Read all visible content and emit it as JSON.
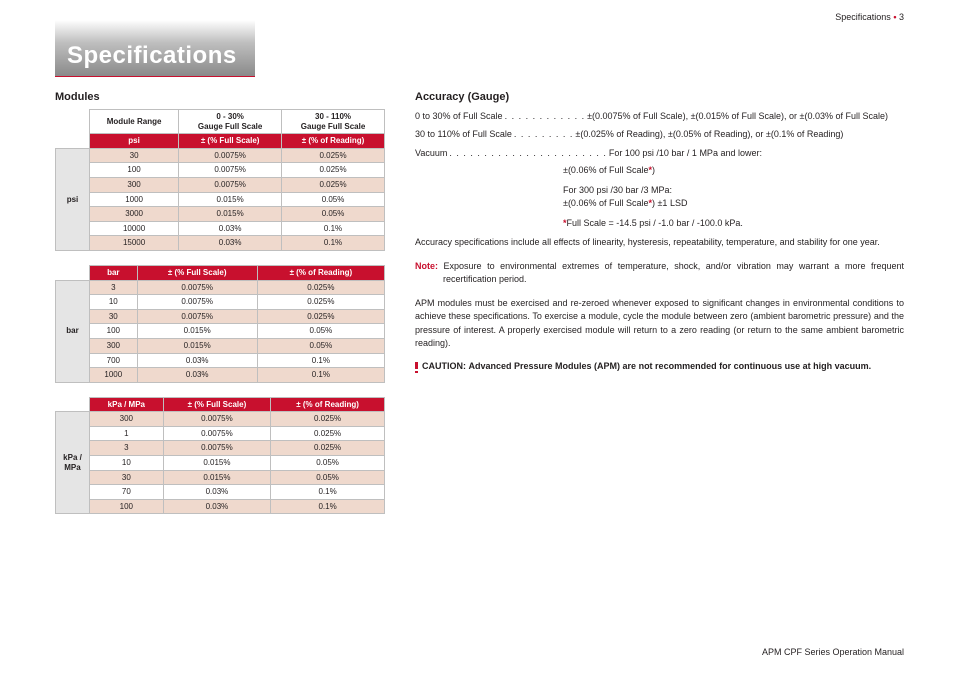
{
  "page_header": {
    "label": "Specifications",
    "bullet": "•",
    "page_num": "3"
  },
  "title": "Specifications",
  "modules_heading": "Modules",
  "accuracy_heading": "Accuracy (Gauge)",
  "tables": {
    "psi": {
      "side_label": "psi",
      "headers": [
        "Module Range",
        "0 - 30%\nGauge Full Scale",
        "30 - 110%\nGauge Full Scale"
      ],
      "unit_row": [
        "psi",
        "± (% Full Scale)",
        "± (% of Reading)"
      ],
      "rows": [
        [
          "30",
          "0.0075%",
          "0.025%"
        ],
        [
          "100",
          "0.0075%",
          "0.025%"
        ],
        [
          "300",
          "0.0075%",
          "0.025%"
        ],
        [
          "1000",
          "0.015%",
          "0.05%"
        ],
        [
          "3000",
          "0.015%",
          "0.05%"
        ],
        [
          "10000",
          "0.03%",
          "0.1%"
        ],
        [
          "15000",
          "0.03%",
          "0.1%"
        ]
      ]
    },
    "bar": {
      "side_label": "bar",
      "unit_row": [
        "bar",
        "± (% Full Scale)",
        "± (% of Reading)"
      ],
      "rows": [
        [
          "3",
          "0.0075%",
          "0.025%"
        ],
        [
          "10",
          "0.0075%",
          "0.025%"
        ],
        [
          "30",
          "0.0075%",
          "0.025%"
        ],
        [
          "100",
          "0.015%",
          "0.05%"
        ],
        [
          "300",
          "0.015%",
          "0.05%"
        ],
        [
          "700",
          "0.03%",
          "0.1%"
        ],
        [
          "1000",
          "0.03%",
          "0.1%"
        ]
      ]
    },
    "kpa": {
      "side_label": "kPa / MPa",
      "unit_row": [
        "kPa / MPa",
        "± (% Full Scale)",
        "± (% of Reading)"
      ],
      "rows": [
        [
          "300",
          "0.0075%",
          "0.025%"
        ],
        [
          "1",
          "0.0075%",
          "0.025%"
        ],
        [
          "3",
          "0.0075%",
          "0.025%"
        ],
        [
          "10",
          "0.015%",
          "0.05%"
        ],
        [
          "30",
          "0.015%",
          "0.05%"
        ],
        [
          "70",
          "0.03%",
          "0.1%"
        ],
        [
          "100",
          "0.03%",
          "0.1%"
        ]
      ]
    }
  },
  "accuracy": {
    "line1_label": "0 to 30% of Full Scale",
    "line1_val": "±(0.0075% of Full Scale), ±(0.015% of Full Scale), or ±(0.03% of Full Scale)",
    "line2_label": "30 to 110% of Full Scale",
    "line2_val": "±(0.025% of Reading), ±(0.05% of Reading), or ±(0.1% of Reading)",
    "line3_label": "Vacuum",
    "line3_val": "For 100 psi /10 bar / 1 MPa and lower:",
    "line3_sub": "±(0.06% of Full Scale",
    "line3_sub_tail": ")",
    "line4a": "For 300 psi /30 bar /3 MPa:",
    "line4b_pre": "±(0.06% of Full Scale",
    "line4b_post": ") ±1 LSD",
    "fs_note_pre": "Full Scale = -14.5 psi / -1.0 bar / -100.0 kPa.",
    "para1": "Accuracy specifications include all effects of linearity, hysteresis, repeatability, temperature, and stability for one year.",
    "note_prefix": "Note:",
    "note_body": " Exposure to environmental extremes of temperature, shock, and/or vibration may warrant a more frequent recertification period.",
    "para2": "APM modules must be exercised and re-zeroed whenever exposed to significant changes in environmental conditions to achieve these specifications. To exercise a module, cycle the module between zero (ambient barometric pressure) and the pressure of interest. A properly exercised module will return to a zero reading (or return to the same ambient barometric reading).",
    "caution_label": "CAUTION:",
    "caution_body": "Advanced Pressure Modules (APM) are not recommended for continuous use at high vacuum."
  },
  "footer": "APM CPF Series Operation Manual"
}
